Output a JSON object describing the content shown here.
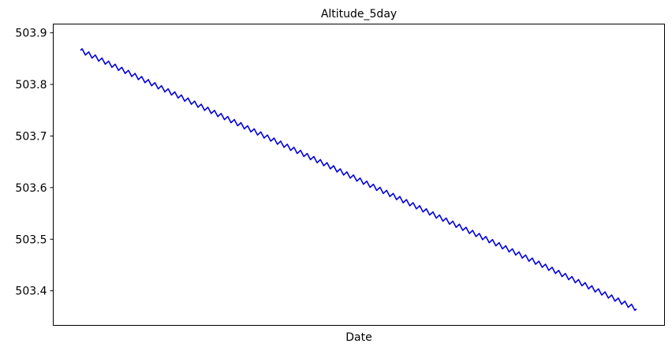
{
  "chart_data": {
    "type": "line",
    "title": "Altitude_5day",
    "xlabel": "Date",
    "ylabel": "",
    "ylim": [
      503.333,
      503.917
    ],
    "yticks": [
      503.4,
      503.5,
      503.6,
      503.7,
      503.8,
      503.9
    ],
    "ytick_labels": [
      "503.4",
      "503.5",
      "503.6",
      "503.7",
      "503.8",
      "503.9"
    ],
    "x_tick_labels": [],
    "grid": false,
    "series": [
      {
        "color": "#0000dd",
        "start": 503.866,
        "end": 503.365,
        "oscillations": 84,
        "amplitude": 0.0045
      }
    ]
  }
}
